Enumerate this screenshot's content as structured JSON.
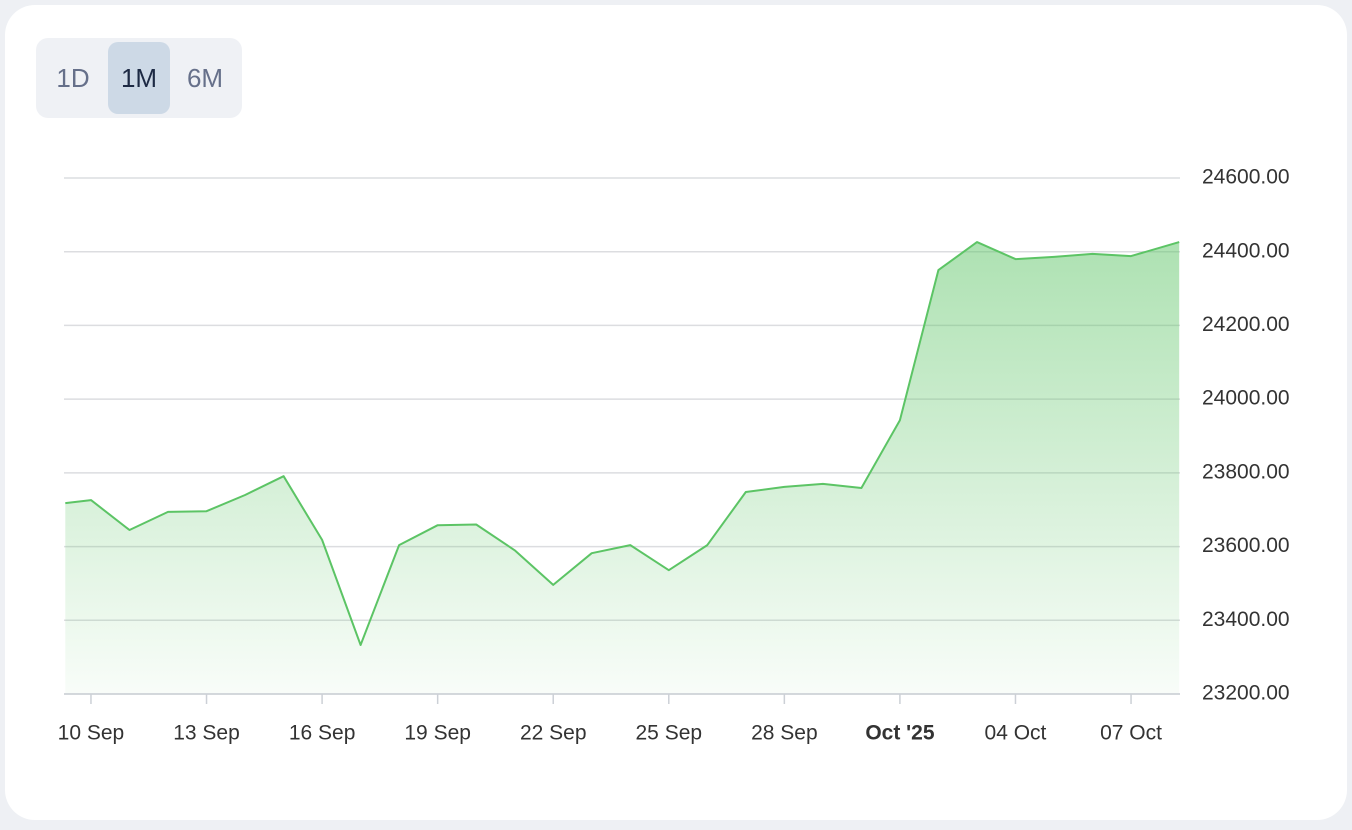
{
  "range_buttons": [
    {
      "label": "1D",
      "active": false
    },
    {
      "label": "1M",
      "active": true
    },
    {
      "label": "6M",
      "active": false
    }
  ],
  "chart_data": {
    "type": "area",
    "color": "#5cc465",
    "grid": true,
    "x": [
      "2025-09-09T08:00",
      "2025-09-10",
      "2025-09-11",
      "2025-09-12",
      "2025-09-13",
      "2025-09-14",
      "2025-09-15",
      "2025-09-16",
      "2025-09-17",
      "2025-09-18",
      "2025-09-19",
      "2025-09-20",
      "2025-09-21",
      "2025-09-22",
      "2025-09-23",
      "2025-09-24",
      "2025-09-25",
      "2025-09-26",
      "2025-09-27",
      "2025-09-28",
      "2025-09-29",
      "2025-09-30",
      "2025-10-01",
      "2025-10-02",
      "2025-10-03",
      "2025-10-04",
      "2025-10-05",
      "2025-10-06",
      "2025-10-07",
      "2025-10-08T06:00"
    ],
    "values": [
      23718,
      23726,
      23645,
      23694,
      23696,
      23740,
      23791,
      23618,
      23333,
      23604,
      23658,
      23660,
      23590,
      23496,
      23582,
      23604,
      23536,
      23604,
      23748,
      23762,
      23770,
      23759,
      23943,
      24350,
      24426,
      24380,
      24386,
      24394,
      24388,
      24426
    ],
    "xlim": [
      "2025-09-09T07:12",
      "2025-10-08T06:30"
    ],
    "xticks": [
      {
        "value": "2025-09-10",
        "label": "10 Sep"
      },
      {
        "value": "2025-09-13",
        "label": "13 Sep"
      },
      {
        "value": "2025-09-16",
        "label": "16 Sep"
      },
      {
        "value": "2025-09-19",
        "label": "19 Sep"
      },
      {
        "value": "2025-09-22",
        "label": "22 Sep"
      },
      {
        "value": "2025-09-25",
        "label": "25 Sep"
      },
      {
        "value": "2025-09-28",
        "label": "28 Sep"
      },
      {
        "value": "2025-10-01",
        "label": "Oct '25",
        "bold": true
      },
      {
        "value": "2025-10-04",
        "label": "04 Oct"
      },
      {
        "value": "2025-10-07",
        "label": "07 Oct"
      }
    ],
    "ylim": [
      23200,
      24600
    ],
    "yticks": [
      {
        "value": 23200,
        "label": "23200.00"
      },
      {
        "value": 23400,
        "label": "23400.00"
      },
      {
        "value": 23600,
        "label": "23600.00"
      },
      {
        "value": 23800,
        "label": "23800.00"
      },
      {
        "value": 24000,
        "label": "24000.00"
      },
      {
        "value": 24200,
        "label": "24200.00"
      },
      {
        "value": 24400,
        "label": "24400.00"
      },
      {
        "value": 24600,
        "label": "24600.00"
      }
    ]
  }
}
